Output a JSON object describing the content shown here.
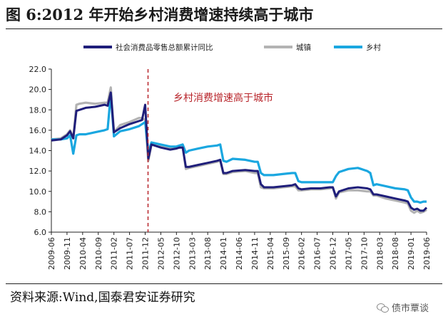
{
  "figure": {
    "title": "图 6:2012 年开始乡村消费增速持续高于城市",
    "source": "资料来源:Wind,国泰君安证券研究",
    "watermark": "债市覃谈"
  },
  "chart_data": {
    "type": "line",
    "title": "",
    "xlabel": "",
    "ylabel": "",
    "ylim": [
      6.0,
      22.0
    ],
    "yticks": [
      "6.0",
      "8.0",
      "10.0",
      "12.0",
      "14.0",
      "16.0",
      "18.0",
      "20.0",
      "22.0"
    ],
    "xticks": [
      "2009-06",
      "2009-11",
      "2010-04",
      "2010-09",
      "2011-02",
      "2011-07",
      "2011-12",
      "2012-05",
      "2012-10",
      "2013-03",
      "2013-08",
      "2014-01",
      "2014-06",
      "2014-11",
      "2015-04",
      "2015-09",
      "2016-02",
      "2016-07",
      "2016-12",
      "2017-05",
      "2017-10",
      "2018-03",
      "2018-08",
      "2019-01",
      "2019-06"
    ],
    "legend_position": "top-center",
    "annotation": {
      "text": "乡村消费增速高于城市",
      "at": "2011-12"
    },
    "series": [
      {
        "name": "社会消费品零售总额累计同比",
        "color": "#1f1e7a",
        "points": [
          [
            "2009-06",
            15.0
          ],
          [
            "2009-09",
            15.1
          ],
          [
            "2009-11",
            15.5
          ],
          [
            "2009-12",
            15.9
          ],
          [
            "2010-01",
            15.2
          ],
          [
            "2010-02",
            17.9
          ],
          [
            "2010-03",
            18.0
          ],
          [
            "2010-05",
            18.2
          ],
          [
            "2010-08",
            18.3
          ],
          [
            "2010-11",
            18.5
          ],
          [
            "2010-12",
            18.4
          ],
          [
            "2011-01",
            19.7
          ],
          [
            "2011-02",
            15.8
          ],
          [
            "2011-04",
            16.2
          ],
          [
            "2011-07",
            16.6
          ],
          [
            "2011-10",
            16.9
          ],
          [
            "2011-11",
            17.0
          ],
          [
            "2011-12",
            18.5
          ],
          [
            "2012-01",
            13.2
          ],
          [
            "2012-02",
            14.6
          ],
          [
            "2012-05",
            14.3
          ],
          [
            "2012-08",
            14.1
          ],
          [
            "2012-10",
            14.2
          ],
          [
            "2012-11",
            14.3
          ],
          [
            "2012-12",
            14.3
          ],
          [
            "2013-01",
            12.4
          ],
          [
            "2013-02",
            12.4
          ],
          [
            "2013-05",
            12.6
          ],
          [
            "2013-08",
            12.8
          ],
          [
            "2013-11",
            13.0
          ],
          [
            "2013-12",
            13.1
          ],
          [
            "2014-01",
            11.8
          ],
          [
            "2014-02",
            11.8
          ],
          [
            "2014-04",
            12.0
          ],
          [
            "2014-08",
            12.1
          ],
          [
            "2014-11",
            12.0
          ],
          [
            "2014-12",
            12.0
          ],
          [
            "2015-01",
            10.7
          ],
          [
            "2015-02",
            10.4
          ],
          [
            "2015-05",
            10.4
          ],
          [
            "2015-08",
            10.5
          ],
          [
            "2015-11",
            10.6
          ],
          [
            "2015-12",
            10.7
          ],
          [
            "2016-01",
            10.3
          ],
          [
            "2016-02",
            10.2
          ],
          [
            "2016-05",
            10.3
          ],
          [
            "2016-08",
            10.3
          ],
          [
            "2016-11",
            10.4
          ],
          [
            "2016-12",
            10.4
          ],
          [
            "2017-01",
            9.5
          ],
          [
            "2017-02",
            10.0
          ],
          [
            "2017-05",
            10.3
          ],
          [
            "2017-08",
            10.4
          ],
          [
            "2017-11",
            10.3
          ],
          [
            "2017-12",
            10.2
          ],
          [
            "2018-01",
            9.7
          ],
          [
            "2018-02",
            9.7
          ],
          [
            "2018-05",
            9.5
          ],
          [
            "2018-08",
            9.3
          ],
          [
            "2018-11",
            9.1
          ],
          [
            "2018-12",
            9.0
          ],
          [
            "2019-01",
            8.4
          ],
          [
            "2019-02",
            8.2
          ],
          [
            "2019-03",
            8.3
          ],
          [
            "2019-04",
            8.1
          ],
          [
            "2019-05",
            8.1
          ],
          [
            "2019-06",
            8.4
          ]
        ]
      },
      {
        "name": "城镇",
        "color": "#b3b3b3",
        "points": [
          [
            "2009-06",
            15.1
          ],
          [
            "2009-09",
            15.2
          ],
          [
            "2009-11",
            15.6
          ],
          [
            "2009-12",
            16.0
          ],
          [
            "2010-01",
            15.2
          ],
          [
            "2010-02",
            18.5
          ],
          [
            "2010-03",
            18.6
          ],
          [
            "2010-05",
            18.7
          ],
          [
            "2010-08",
            18.6
          ],
          [
            "2010-11",
            18.7
          ],
          [
            "2010-12",
            18.7
          ],
          [
            "2011-01",
            20.2
          ],
          [
            "2011-02",
            15.8
          ],
          [
            "2011-04",
            16.5
          ],
          [
            "2011-07",
            16.8
          ],
          [
            "2011-10",
            17.2
          ],
          [
            "2011-11",
            17.2
          ],
          [
            "2011-12",
            17.0
          ],
          [
            "2012-01",
            13.0
          ],
          [
            "2012-02",
            14.6
          ],
          [
            "2012-05",
            14.4
          ],
          [
            "2012-08",
            14.2
          ],
          [
            "2012-10",
            14.3
          ],
          [
            "2012-11",
            14.3
          ],
          [
            "2012-12",
            14.4
          ],
          [
            "2013-01",
            12.2
          ],
          [
            "2013-02",
            12.3
          ],
          [
            "2013-05",
            12.5
          ],
          [
            "2013-08",
            12.7
          ],
          [
            "2013-11",
            12.9
          ],
          [
            "2013-12",
            13.0
          ],
          [
            "2014-01",
            11.7
          ],
          [
            "2014-02",
            11.7
          ],
          [
            "2014-04",
            11.9
          ],
          [
            "2014-08",
            12.0
          ],
          [
            "2014-11",
            11.8
          ],
          [
            "2014-12",
            11.8
          ],
          [
            "2015-01",
            10.4
          ],
          [
            "2015-02",
            10.3
          ],
          [
            "2015-05",
            10.3
          ],
          [
            "2015-08",
            10.4
          ],
          [
            "2015-11",
            10.5
          ],
          [
            "2015-12",
            10.5
          ],
          [
            "2016-01",
            10.1
          ],
          [
            "2016-02",
            10.1
          ],
          [
            "2016-05",
            10.2
          ],
          [
            "2016-08",
            10.2
          ],
          [
            "2016-11",
            10.3
          ],
          [
            "2016-12",
            10.4
          ],
          [
            "2017-01",
            9.3
          ],
          [
            "2017-02",
            9.9
          ],
          [
            "2017-05",
            10.1
          ],
          [
            "2017-08",
            10.1
          ],
          [
            "2017-11",
            10.0
          ],
          [
            "2017-12",
            10.0
          ],
          [
            "2018-01",
            9.6
          ],
          [
            "2018-02",
            9.6
          ],
          [
            "2018-05",
            9.3
          ],
          [
            "2018-08",
            9.1
          ],
          [
            "2018-11",
            8.9
          ],
          [
            "2018-12",
            8.8
          ],
          [
            "2019-01",
            8.1
          ],
          [
            "2019-02",
            7.9
          ],
          [
            "2019-03",
            8.1
          ],
          [
            "2019-04",
            7.9
          ],
          [
            "2019-05",
            8.0
          ],
          [
            "2019-06",
            8.2
          ]
        ]
      },
      {
        "name": "乡村",
        "color": "#1aa7e0",
        "points": [
          [
            "2009-06",
            15.1
          ],
          [
            "2009-09",
            15.1
          ],
          [
            "2009-11",
            15.2
          ],
          [
            "2009-12",
            15.5
          ],
          [
            "2010-01",
            13.7
          ],
          [
            "2010-02",
            15.5
          ],
          [
            "2010-03",
            15.6
          ],
          [
            "2010-05",
            15.6
          ],
          [
            "2010-08",
            15.8
          ],
          [
            "2010-11",
            16.0
          ],
          [
            "2010-12",
            16.1
          ],
          [
            "2011-01",
            19.6
          ],
          [
            "2011-02",
            15.4
          ],
          [
            "2011-04",
            15.9
          ],
          [
            "2011-07",
            16.1
          ],
          [
            "2011-10",
            16.4
          ],
          [
            "2011-11",
            16.6
          ],
          [
            "2011-12",
            16.8
          ],
          [
            "2012-01",
            13.8
          ],
          [
            "2012-02",
            14.8
          ],
          [
            "2012-05",
            14.6
          ],
          [
            "2012-08",
            14.4
          ],
          [
            "2012-10",
            14.4
          ],
          [
            "2012-11",
            14.5
          ],
          [
            "2012-12",
            14.6
          ],
          [
            "2013-01",
            13.8
          ],
          [
            "2013-02",
            14.0
          ],
          [
            "2013-05",
            14.2
          ],
          [
            "2013-08",
            14.4
          ],
          [
            "2013-11",
            14.5
          ],
          [
            "2013-12",
            14.6
          ],
          [
            "2014-01",
            13.0
          ],
          [
            "2014-02",
            12.9
          ],
          [
            "2014-04",
            13.2
          ],
          [
            "2014-08",
            13.1
          ],
          [
            "2014-11",
            12.9
          ],
          [
            "2014-12",
            12.9
          ],
          [
            "2015-01",
            11.8
          ],
          [
            "2015-02",
            11.6
          ],
          [
            "2015-05",
            11.6
          ],
          [
            "2015-08",
            11.7
          ],
          [
            "2015-11",
            11.8
          ],
          [
            "2015-12",
            11.8
          ],
          [
            "2016-01",
            11.0
          ],
          [
            "2016-02",
            10.9
          ],
          [
            "2016-05",
            10.9
          ],
          [
            "2016-08",
            10.9
          ],
          [
            "2016-11",
            10.9
          ],
          [
            "2016-12",
            10.9
          ],
          [
            "2017-01",
            11.5
          ],
          [
            "2017-02",
            11.9
          ],
          [
            "2017-05",
            12.2
          ],
          [
            "2017-08",
            12.3
          ],
          [
            "2017-11",
            12.0
          ],
          [
            "2017-12",
            11.8
          ],
          [
            "2018-01",
            10.6
          ],
          [
            "2018-02",
            10.7
          ],
          [
            "2018-05",
            10.5
          ],
          [
            "2018-08",
            10.3
          ],
          [
            "2018-11",
            10.2
          ],
          [
            "2018-12",
            10.1
          ],
          [
            "2019-01",
            9.4
          ],
          [
            "2019-02",
            9.0
          ],
          [
            "2019-03",
            9.0
          ],
          [
            "2019-04",
            8.9
          ],
          [
            "2019-05",
            9.0
          ],
          [
            "2019-06",
            9.0
          ]
        ]
      }
    ]
  }
}
